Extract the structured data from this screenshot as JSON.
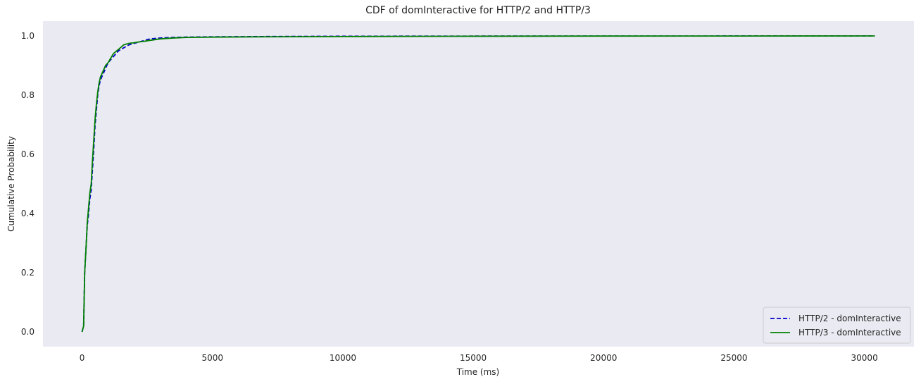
{
  "chart_data": {
    "type": "line",
    "title": "CDF of domInteractive for HTTP/2 and HTTP/3",
    "xlabel": "Time (ms)",
    "ylabel": "Cumulative Probability",
    "xlim": [
      -1500,
      31900
    ],
    "ylim": [
      -0.05,
      1.05
    ],
    "xticks": [
      0,
      5000,
      10000,
      15000,
      20000,
      25000,
      30000
    ],
    "yticks": [
      0.0,
      0.2,
      0.4,
      0.6,
      0.8,
      1.0
    ],
    "xtick_labels": [
      "0",
      "5000",
      "10000",
      "15000",
      "20000",
      "25000",
      "30000"
    ],
    "ytick_labels": [
      "0.0",
      "0.2",
      "0.4",
      "0.6",
      "0.8",
      "1.0"
    ],
    "grid": false,
    "background": "#eaeaf2",
    "legend_position": "bottom-right",
    "series": [
      {
        "name": "HTTP/2 - domInteractive",
        "color": "#0000cc",
        "style": "dashed",
        "x": [
          0,
          60,
          100,
          150,
          200,
          250,
          300,
          350,
          400,
          450,
          500,
          550,
          600,
          650,
          700,
          800,
          900,
          1000,
          1200,
          1400,
          1600,
          1800,
          2000,
          2200,
          2400,
          2600,
          3000,
          3500,
          4000,
          5000,
          7000,
          10000,
          15000,
          20000,
          25000,
          30400
        ],
        "y": [
          0.0,
          0.02,
          0.2,
          0.28,
          0.36,
          0.4,
          0.45,
          0.48,
          0.55,
          0.62,
          0.7,
          0.75,
          0.8,
          0.83,
          0.85,
          0.87,
          0.89,
          0.91,
          0.93,
          0.95,
          0.96,
          0.97,
          0.975,
          0.98,
          0.985,
          0.99,
          0.993,
          0.995,
          0.996,
          0.997,
          0.998,
          0.999,
          0.9995,
          0.9997,
          0.9998,
          1.0
        ]
      },
      {
        "name": "HTTP/3 - domInteractive",
        "color": "#008000",
        "style": "solid",
        "x": [
          0,
          60,
          100,
          150,
          200,
          250,
          300,
          350,
          400,
          450,
          500,
          550,
          600,
          650,
          700,
          800,
          900,
          1000,
          1200,
          1400,
          1600,
          1800,
          2000,
          2200,
          2400,
          2600,
          3000,
          3500,
          4000,
          5000,
          7000,
          10000,
          15000,
          20000,
          25000,
          30400
        ],
        "y": [
          0.0,
          0.02,
          0.2,
          0.28,
          0.37,
          0.42,
          0.47,
          0.5,
          0.58,
          0.65,
          0.72,
          0.77,
          0.81,
          0.84,
          0.86,
          0.88,
          0.9,
          0.91,
          0.94,
          0.955,
          0.97,
          0.975,
          0.977,
          0.98,
          0.982,
          0.985,
          0.99,
          0.993,
          0.995,
          0.996,
          0.997,
          0.998,
          0.999,
          0.9995,
          0.9997,
          1.0
        ]
      }
    ]
  }
}
